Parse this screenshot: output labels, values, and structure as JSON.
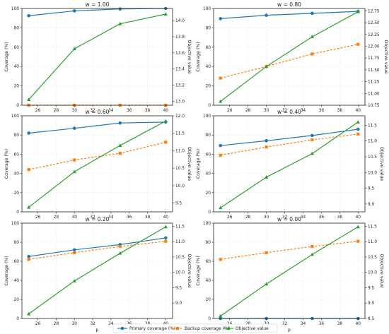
{
  "figure": {
    "xlabel": "p",
    "legend": {
      "placement": "bottom-center",
      "items": [
        {
          "series": "primary",
          "label": "Primary coverage (%)"
        },
        {
          "series": "backup",
          "label": "Backup coverage (%)"
        },
        {
          "series": "objective",
          "label": "Objective value"
        }
      ]
    },
    "colors": {
      "primary": "#1f77b4",
      "backup": "#ff7f0e",
      "objective": "#2ca02c"
    }
  },
  "chart_data": [
    {
      "type": "line",
      "title": "w = 1.00",
      "xlabel": "",
      "ylabel": "Coverage (%)",
      "y2label": "Objective value",
      "x": [
        25,
        30,
        35,
        40
      ],
      "xlim": [
        24.25,
        40.75
      ],
      "ylim": [
        0,
        100
      ],
      "y2lim": [
        12.95,
        14.15
      ],
      "xticks": [
        26,
        28,
        30,
        32,
        34,
        36,
        38,
        40
      ],
      "yticks": [
        0,
        20,
        40,
        60,
        80,
        100
      ],
      "y2ticks": [
        13.0,
        13.2,
        13.4,
        13.6,
        13.8,
        14.0
      ],
      "y2tick_decimals": 1,
      "grid": true,
      "series": [
        {
          "key": "primary",
          "axis": "left",
          "values": [
            92.5,
            97.5,
            99.5,
            100
          ]
        },
        {
          "key": "backup",
          "axis": "left",
          "values": [
            0,
            0,
            0,
            0
          ]
        },
        {
          "key": "objective",
          "axis": "right",
          "values": [
            13.02,
            13.65,
            13.96,
            14.08
          ]
        }
      ]
    },
    {
      "type": "line",
      "title": "w = 0.80",
      "xlabel": "",
      "ylabel": "Coverage (%)",
      "y2label": "Objective value",
      "x": [
        25,
        30,
        35,
        40
      ],
      "xlim": [
        24.25,
        40.75
      ],
      "ylim": [
        0,
        100
      ],
      "y2lim": [
        10.75,
        12.8
      ],
      "xticks": [
        26,
        28,
        30,
        32,
        34,
        36,
        38,
        40
      ],
      "yticks": [
        0,
        20,
        40,
        60,
        80,
        100
      ],
      "y2ticks": [
        10.75,
        11.0,
        11.25,
        11.5,
        11.75,
        12.0,
        12.25,
        12.5,
        12.75
      ],
      "y2tick_decimals": 2,
      "grid": true,
      "series": [
        {
          "key": "primary",
          "axis": "left",
          "values": [
            89.5,
            93,
            95,
            97
          ]
        },
        {
          "key": "backup",
          "axis": "left",
          "values": [
            28,
            40,
            53,
            63
          ]
        },
        {
          "key": "objective",
          "axis": "right",
          "values": [
            10.83,
            11.57,
            12.2,
            12.73
          ]
        }
      ]
    },
    {
      "type": "line",
      "title": "w = 0.60",
      "xlabel": "",
      "ylabel": "Coverage (%)",
      "y2label": "Objective value",
      "x": [
        25,
        30,
        35,
        40
      ],
      "xlim": [
        24.25,
        40.75
      ],
      "ylim": [
        0,
        100
      ],
      "y2lim": [
        9.25,
        12.0
      ],
      "xticks": [
        26,
        28,
        30,
        32,
        34,
        36,
        38,
        40
      ],
      "yticks": [
        0,
        20,
        40,
        60,
        80,
        100
      ],
      "y2ticks": [
        9.5,
        10.0,
        10.5,
        11.0,
        11.5,
        12.0
      ],
      "y2tick_decimals": 1,
      "grid": true,
      "series": [
        {
          "key": "primary",
          "axis": "left",
          "values": [
            82,
            87,
            92.5,
            93.5
          ]
        },
        {
          "key": "backup",
          "axis": "left",
          "values": [
            44,
            54,
            61,
            72.5
          ]
        },
        {
          "key": "objective",
          "axis": "right",
          "values": [
            9.38,
            10.4,
            11.15,
            11.85
          ]
        }
      ]
    },
    {
      "type": "line",
      "title": "w = 0.40",
      "xlabel": "",
      "ylabel": "Coverage (%)",
      "y2label": "Objective value",
      "x": [
        25,
        30,
        35,
        40
      ],
      "xlim": [
        24.25,
        40.75
      ],
      "ylim": [
        0,
        100
      ],
      "y2lim": [
        8.75,
        11.8
      ],
      "xticks": [
        26,
        28,
        30,
        32,
        34,
        36,
        38,
        40
      ],
      "yticks": [
        0,
        20,
        40,
        60,
        80,
        100
      ],
      "y2ticks": [
        9.0,
        9.5,
        10.0,
        10.5,
        11.0,
        11.5
      ],
      "y2tick_decimals": 1,
      "grid": true,
      "series": [
        {
          "key": "primary",
          "axis": "left",
          "values": [
            69,
            74,
            79.5,
            86
          ]
        },
        {
          "key": "backup",
          "axis": "left",
          "values": [
            59,
            67.5,
            75,
            81
          ]
        },
        {
          "key": "objective",
          "axis": "right",
          "values": [
            8.88,
            9.85,
            10.6,
            11.6
          ]
        }
      ]
    },
    {
      "type": "line",
      "title": "w = 0.20",
      "xlabel": "p",
      "ylabel": "Coverage (%)",
      "y2label": "Objective value",
      "x": [
        25,
        30,
        35,
        40
      ],
      "xlim": [
        24.25,
        40.75
      ],
      "ylim": [
        0,
        100
      ],
      "y2lim": [
        8.5,
        11.6
      ],
      "xticks": [
        26,
        28,
        30,
        32,
        34,
        36,
        38,
        40
      ],
      "yticks": [
        0,
        20,
        40,
        60,
        80,
        100
      ],
      "y2ticks": [
        9.0,
        9.5,
        10.0,
        10.5,
        11.0,
        11.5
      ],
      "y2tick_decimals": 1,
      "grid": true,
      "series": [
        {
          "key": "primary",
          "axis": "left",
          "values": [
            65,
            72,
            77.5,
            84.5
          ]
        },
        {
          "key": "backup",
          "axis": "left",
          "values": [
            62,
            69,
            75.5,
            81
          ]
        },
        {
          "key": "objective",
          "axis": "right",
          "values": [
            8.65,
            9.72,
            10.62,
            11.48
          ]
        }
      ]
    },
    {
      "type": "line",
      "title": "w = 0.00",
      "xlabel": "p",
      "ylabel": "Coverage (%)",
      "y2label": "Objective value",
      "x": [
        25,
        30,
        35,
        40
      ],
      "xlim": [
        24.25,
        40.75
      ],
      "ylim": [
        0,
        100
      ],
      "y2lim": [
        8.5,
        11.6
      ],
      "xticks": [
        26,
        28,
        30,
        32,
        34,
        36,
        38,
        40
      ],
      "yticks": [
        0,
        20,
        40,
        60,
        80,
        100
      ],
      "y2ticks": [
        8.5,
        9.0,
        9.5,
        10.0,
        10.5,
        11.0,
        11.5
      ],
      "y2tick_decimals": 1,
      "grid": true,
      "series": [
        {
          "key": "primary",
          "axis": "left",
          "values": [
            0,
            0,
            0,
            0
          ]
        },
        {
          "key": "backup",
          "axis": "left",
          "values": [
            62,
            69,
            75.5,
            81
          ]
        },
        {
          "key": "objective",
          "axis": "right",
          "values": [
            8.58,
            9.62,
            10.58,
            11.48
          ]
        }
      ]
    }
  ]
}
